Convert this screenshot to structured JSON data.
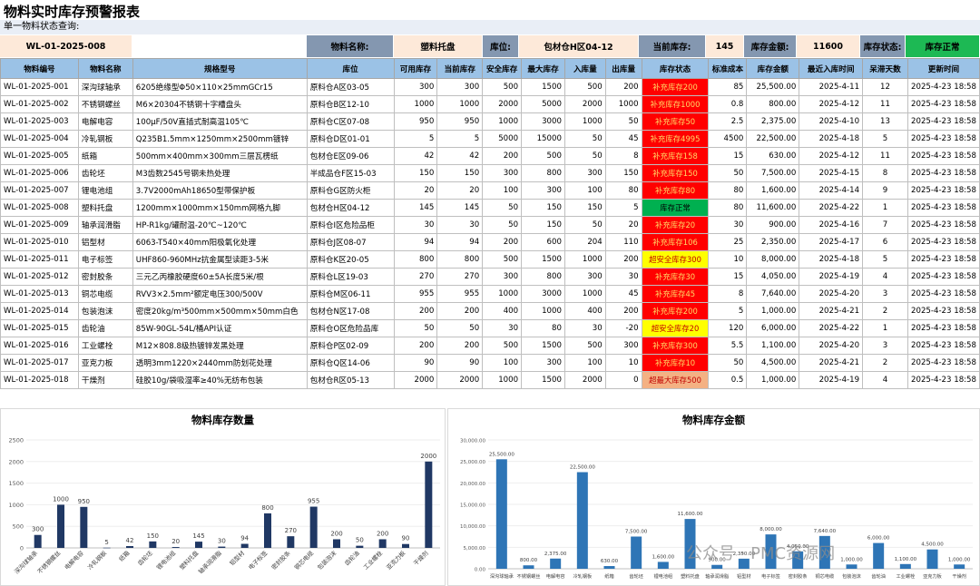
{
  "title": "物料实时库存预警报表",
  "query": {
    "section_label": "单一物料状态查询:",
    "code": "WL-01-2025-008",
    "name_label": "物料名称:",
    "name_value": "塑料托盘",
    "location_label": "库位:",
    "location_value": "包材仓H区04-12",
    "stock_label": "当前库存:",
    "stock_value": "145",
    "amount_label": "库存金额:",
    "amount_value": "11600",
    "status_label": "库存状态:",
    "status_value": "库存正常"
  },
  "table": {
    "headers": [
      "物料编号",
      "物料名称",
      "规格型号",
      "库位",
      "可用库存",
      "当前库存",
      "安全库存",
      "最大库存",
      "入库量",
      "出库量",
      "库存状态",
      "标准成本",
      "库存金额",
      "最近入库时间",
      "呆滞天数",
      "更新时间"
    ],
    "rows": [
      [
        "WL-01-2025-001",
        "深沟球轴承",
        "6205绝缘型Φ50×110×25mmGCr15",
        "原料仓A区03-05",
        "300",
        "300",
        "500",
        "1500",
        "500",
        "200",
        "补充库存200",
        "85",
        "25,500.00",
        "2025-4-11",
        "12",
        "2025-4-23 18:58"
      ],
      [
        "WL-01-2025-002",
        "不锈钢螺丝",
        "M6×20304不锈钢十字槽盘头",
        "原料仓B区12-10",
        "1000",
        "1000",
        "2000",
        "5000",
        "2000",
        "1000",
        "补充库存1000",
        "0.8",
        "800.00",
        "2025-4-12",
        "11",
        "2025-4-23 18:58"
      ],
      [
        "WL-01-2025-003",
        "电解电容",
        "100μF/50V直插式耐高温105℃",
        "原料仓C区07-08",
        "950",
        "950",
        "1000",
        "3000",
        "1000",
        "50",
        "补充库存50",
        "2.5",
        "2,375.00",
        "2025-4-10",
        "13",
        "2025-4-23 18:58"
      ],
      [
        "WL-01-2025-004",
        "冷轧钢板",
        "Q235B1.5mm×1250mm×2500mm镀锌",
        "原料仓D区01-01",
        "5",
        "5",
        "5000",
        "15000",
        "50",
        "45",
        "补充库存4995",
        "4500",
        "22,500.00",
        "2025-4-18",
        "5",
        "2025-4-23 18:58"
      ],
      [
        "WL-01-2025-005",
        "纸箱",
        "500mm×400mm×300mm三层瓦楞纸",
        "包材仓E区09-06",
        "42",
        "42",
        "200",
        "500",
        "50",
        "8",
        "补充库存158",
        "15",
        "630.00",
        "2025-4-12",
        "11",
        "2025-4-23 18:58"
      ],
      [
        "WL-01-2025-006",
        "齿轮坯",
        "M3齿数2545号钢未热处理",
        "半成品仓F区15-03",
        "150",
        "150",
        "300",
        "800",
        "300",
        "150",
        "补充库存150",
        "50",
        "7,500.00",
        "2025-4-15",
        "8",
        "2025-4-23 18:58"
      ],
      [
        "WL-01-2025-007",
        "锂电池组",
        "3.7V2000mAh18650型带保护板",
        "原料仓G区防火柜",
        "20",
        "20",
        "100",
        "300",
        "100",
        "80",
        "补充库存80",
        "80",
        "1,600.00",
        "2025-4-14",
        "9",
        "2025-4-23 18:58"
      ],
      [
        "WL-01-2025-008",
        "塑料托盘",
        "1200mm×1000mm×150mm网格九脚",
        "包材仓H区04-12",
        "145",
        "145",
        "50",
        "150",
        "150",
        "5",
        "库存正常",
        "80",
        "11,600.00",
        "2025-4-22",
        "1",
        "2025-4-23 18:58"
      ],
      [
        "WL-01-2025-009",
        "轴承润滑脂",
        "HP-R1kg/罐耐温-20℃~120℃",
        "原料仓I区危险品柜",
        "30",
        "30",
        "50",
        "150",
        "50",
        "20",
        "补充库存20",
        "30",
        "900.00",
        "2025-4-16",
        "7",
        "2025-4-23 18:58"
      ],
      [
        "WL-01-2025-010",
        "铝型材",
        "6063-T540×40mm阳极氧化处理",
        "原料仓J区08-07",
        "94",
        "94",
        "200",
        "600",
        "204",
        "110",
        "补充库存106",
        "25",
        "2,350.00",
        "2025-4-17",
        "6",
        "2025-4-23 18:58"
      ],
      [
        "WL-01-2025-011",
        "电子标签",
        "UHF860-960MHz抗金属型读距3-5米",
        "原料仓K区20-05",
        "800",
        "800",
        "500",
        "1500",
        "1000",
        "200",
        "超安全库存300",
        "10",
        "8,000.00",
        "2025-4-18",
        "5",
        "2025-4-23 18:58"
      ],
      [
        "WL-01-2025-012",
        "密封胶条",
        "三元乙丙橡胶硬度60±5A长度5米/根",
        "原料仓L区19-03",
        "270",
        "270",
        "300",
        "800",
        "300",
        "30",
        "补充库存30",
        "15",
        "4,050.00",
        "2025-4-19",
        "4",
        "2025-4-23 18:58"
      ],
      [
        "WL-01-2025-013",
        "铜芯电缆",
        "RVV3×2.5mm²额定电压300/500V",
        "原料仓M区06-11",
        "955",
        "955",
        "1000",
        "3000",
        "1000",
        "45",
        "补充库存45",
        "8",
        "7,640.00",
        "2025-4-20",
        "3",
        "2025-4-23 18:58"
      ],
      [
        "WL-01-2025-014",
        "包装泡沫",
        "密度20kg/m³500mm×500mm×50mm白色",
        "包材仓N区17-08",
        "200",
        "200",
        "400",
        "1000",
        "400",
        "200",
        "补充库存200",
        "5",
        "1,000.00",
        "2025-4-21",
        "2",
        "2025-4-23 18:58"
      ],
      [
        "WL-01-2025-015",
        "齿轮油",
        "85W-90GL-54L/桶API认证",
        "原料仓O区危险品库",
        "50",
        "50",
        "30",
        "80",
        "30",
        "-20",
        "超安全库存20",
        "120",
        "6,000.00",
        "2025-4-22",
        "1",
        "2025-4-23 18:58"
      ],
      [
        "WL-01-2025-016",
        "工业螺栓",
        "M12×808.8级热镀锌发黑处理",
        "原料仓P区02-09",
        "200",
        "200",
        "500",
        "1500",
        "500",
        "300",
        "补充库存300",
        "5.5",
        "1,100.00",
        "2025-4-20",
        "3",
        "2025-4-23 18:58"
      ],
      [
        "WL-01-2025-017",
        "亚克力板",
        "透明3mm1220×2440mm防划花处理",
        "原料仓Q区14-06",
        "90",
        "90",
        "100",
        "300",
        "100",
        "10",
        "补充库存10",
        "50",
        "4,500.00",
        "2025-4-21",
        "2",
        "2025-4-23 18:58"
      ],
      [
        "WL-01-2025-018",
        "干燥剂",
        "硅胶10g/袋吸湿率≥40%无纺布包装",
        "包材仓R区05-13",
        "2000",
        "2000",
        "1000",
        "1500",
        "2000",
        "0",
        "超最大库存500",
        "0.5",
        "1,000.00",
        "2025-4-19",
        "4",
        "2025-4-23 18:58"
      ]
    ],
    "status_colors": {
      "red": "#ff0000",
      "green": "#00b050",
      "yellow": "#ffff00",
      "orange": "#f4b183"
    }
  },
  "chart_data": [
    {
      "type": "bar",
      "title": "物料库存数量",
      "categories": [
        "深沟球轴承",
        "不锈钢螺丝",
        "电解电容",
        "冷轧钢板",
        "纸箱",
        "齿轮坯",
        "锂电池组",
        "塑料托盘",
        "轴承润滑脂",
        "铝型材",
        "电子标签",
        "密封胶条",
        "铜芯电缆",
        "包装泡沫",
        "齿轮油",
        "工业螺栓",
        "亚克力板",
        "干燥剂"
      ],
      "values": [
        300,
        1000,
        950,
        5,
        42,
        150,
        20,
        145,
        30,
        94,
        800,
        270,
        955,
        200,
        50,
        200,
        90,
        2000
      ],
      "ylim": [
        0,
        2500
      ],
      "yticks": [
        0,
        500,
        1000,
        1500,
        2000,
        2500
      ],
      "color": "#203864"
    },
    {
      "type": "bar",
      "title": "物料库存金额",
      "categories": [
        "深沟球轴承",
        "不锈钢螺丝",
        "电解电容",
        "冷轧钢板",
        "纸箱",
        "齿轮坯",
        "锂电池组",
        "塑料托盘",
        "轴承润滑脂",
        "铝型材",
        "电子标签",
        "密封胶条",
        "铜芯电缆",
        "包装泡沫",
        "齿轮油",
        "工业螺栓",
        "亚克力板",
        "干燥剂"
      ],
      "values": [
        25500,
        800,
        2375,
        22500,
        630,
        7500,
        1600,
        11600,
        900,
        2350,
        8000,
        4050,
        7640,
        1000,
        6000,
        1100,
        4500,
        1000
      ],
      "labels": [
        "25,500.00",
        "800.00",
        "2,375.00",
        "22,500.00",
        "630.00",
        "7,500.00",
        "1,600.00",
        "11,600.00",
        "900.00",
        "2,350.00",
        "8,000.00",
        "4,050.00",
        "7,640.00",
        "1,000.00",
        "6,000.00",
        "1,100.00",
        "4,500.00",
        "1,000.00"
      ],
      "ylim": [
        0,
        30000
      ],
      "yticks": [
        "0.00",
        "5,000.00",
        "10,000.00",
        "15,000.00",
        "20,000.00",
        "25,000.00",
        "30,000.00"
      ],
      "color": "#2e75b6"
    }
  ],
  "watermark": "公众号 · PMC资源网"
}
